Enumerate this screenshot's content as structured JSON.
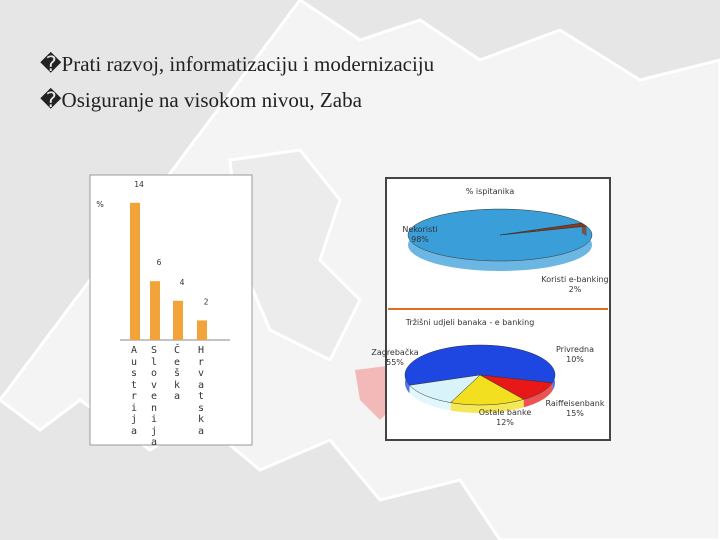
{
  "bullets": [
    "�Prati razvoj, informatizaciju i modernizaciju",
    "�Osiguranje na visokom nivou, Zaba"
  ],
  "chart_data": [
    {
      "type": "bar",
      "y_label": "%",
      "categories": [
        "Austrija",
        "Slovenija",
        "Češka",
        "Hrvatska"
      ],
      "values": [
        14,
        6,
        4,
        2
      ],
      "color": "#f2a33a"
    },
    {
      "type": "pie",
      "title": "% ispitanika",
      "names": [
        "Nekoristi",
        "Koristi e-banking"
      ],
      "values": [
        98,
        2
      ],
      "value_labels": [
        "98%",
        "2%"
      ],
      "colors": [
        "#3a9ed8",
        "#8a3a1a"
      ]
    },
    {
      "type": "pie",
      "title": "Tržišni udjeli banaka - e banking",
      "names": [
        "Zagrebačka",
        "Privredna",
        "Raiffeisenbank",
        "Ostale banke"
      ],
      "values": [
        55,
        10,
        15,
        12
      ],
      "value_labels": [
        "55%",
        "10%",
        "15%",
        "12%"
      ],
      "colors": [
        "#1e46e0",
        "#e81818",
        "#f2e020",
        "#d8f4fa"
      ]
    }
  ]
}
